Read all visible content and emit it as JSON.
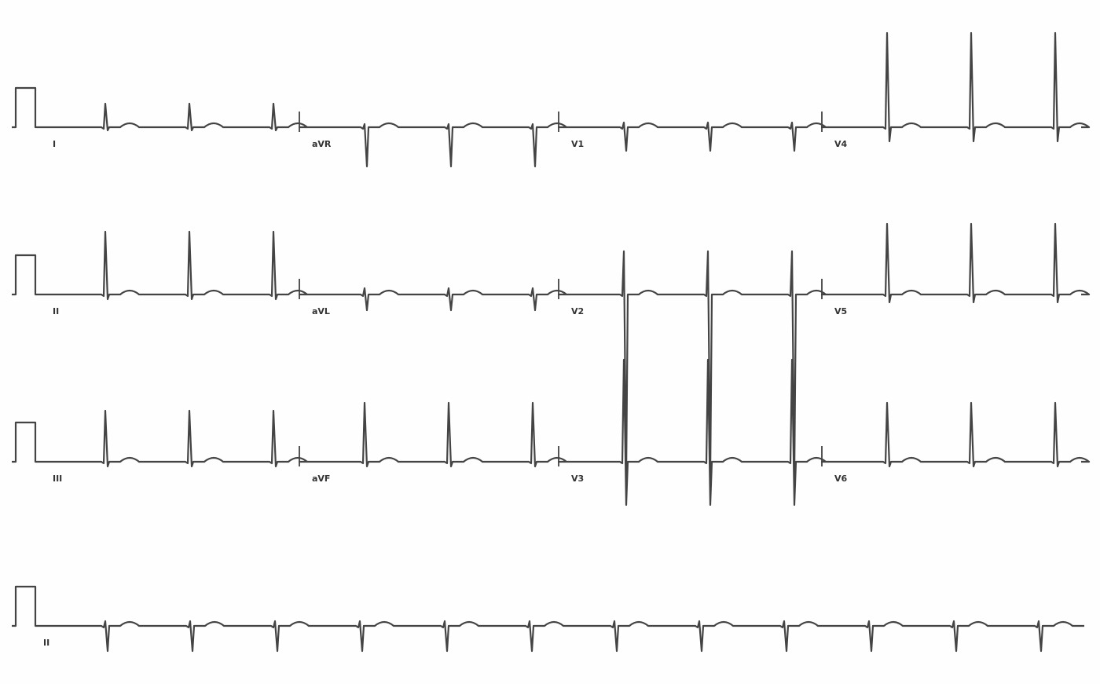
{
  "leads": {
    "rows": [
      [
        "I",
        "aVR",
        "V1",
        "V4"
      ],
      [
        "II",
        "aVL",
        "V2",
        "V5"
      ],
      [
        "III",
        "aVF",
        "V3",
        "V6"
      ],
      [
        "II"
      ]
    ]
  }
}
